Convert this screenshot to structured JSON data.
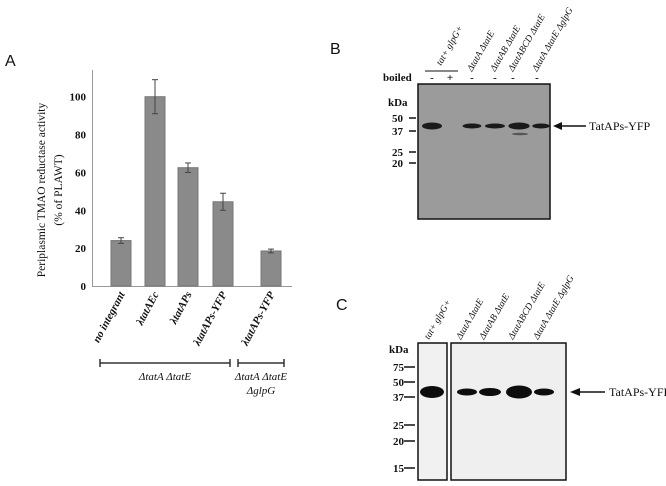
{
  "panels": {
    "a": "A",
    "b": "B",
    "c": "C"
  },
  "chart_data": {
    "type": "bar",
    "ylabel_line1": "Periplasmic TMAO reductase activity",
    "ylabel_line2": "(% of PLAWT)",
    "categories": [
      "no integrant",
      "λtatAEc",
      "λtatAPs",
      "λtatAPs-YFP",
      "λtatAPs-YFP"
    ],
    "values": [
      24,
      100,
      62.5,
      44.5,
      18.5
    ],
    "errors": [
      1.5,
      9,
      2.5,
      4.5,
      1
    ],
    "yticks": [
      "0",
      "20",
      "40",
      "60",
      "80",
      "100"
    ],
    "ylim": [
      0,
      110
    ],
    "bar_color": "#8a8a8a",
    "groups": [
      {
        "label": "ΔtatA ΔtatE",
        "lines": [
          "ΔtatA ΔtatE"
        ]
      },
      {
        "label": "ΔtatA ΔtatE ΔglpG",
        "lines": [
          "ΔtatA ΔtatE",
          "ΔglpG"
        ]
      }
    ]
  },
  "blot_b": {
    "boiled_label": "boiled",
    "boiled": [
      "-",
      "+",
      "-",
      "-",
      "-",
      "-"
    ],
    "lanes": [
      "tat+ glpG+",
      "ΔtatA ΔtatE",
      "ΔtatAB ΔtatE",
      "ΔtatABCD ΔtatE",
      "ΔtatA ΔtatE ΔglpG"
    ],
    "kda_label": "kDa",
    "markers": [
      "50",
      "37",
      "25",
      "20"
    ],
    "band_label": "TatAPs-YFP"
  },
  "blot_c": {
    "lanes": [
      "tat+ glpG+",
      "ΔtatA ΔtatE",
      "ΔtatAB ΔtatE",
      "ΔtatABCD ΔtatE",
      "ΔtatA ΔtatE ΔglpG"
    ],
    "kda_label": "kDa",
    "markers": [
      "75",
      "50",
      "37",
      "25",
      "20",
      "15"
    ],
    "band_label": "TatAPs-YFP"
  }
}
